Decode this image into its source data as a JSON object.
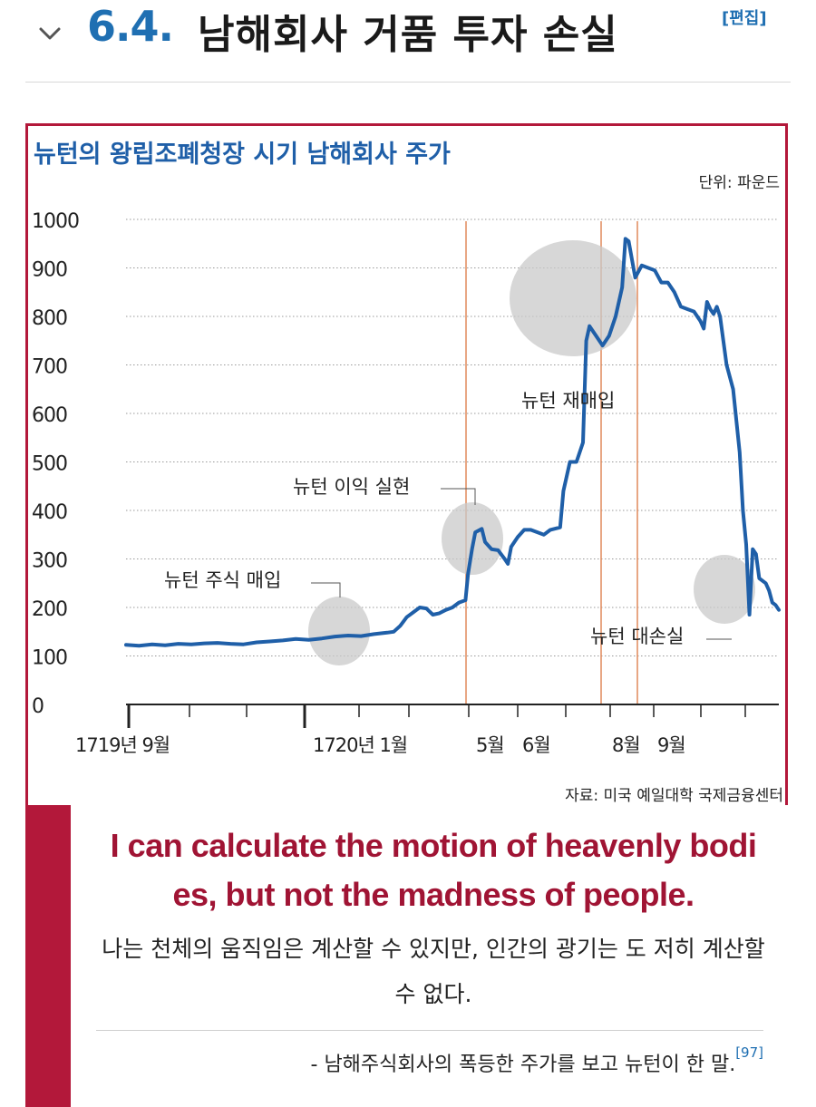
{
  "section": {
    "number": "6.4.",
    "title": "남해회사 거품 투자 손실",
    "edit_label": "[편집]",
    "toggle_icon": "chevron-down-icon"
  },
  "chart_data": {
    "type": "line",
    "title": "뉴턴의 왕립조폐청장 시기 남해회사 주가",
    "unit": "단위: 파운드",
    "source": "자료: 미국 예일대학 국제금융센터",
    "ylim": [
      0,
      1000
    ],
    "y_ticks": [
      0,
      100,
      200,
      300,
      400,
      500,
      600,
      700,
      800,
      900,
      1000
    ],
    "x_tick_labels": [
      "1719년 9월",
      "1720년 1월",
      "5월",
      "6월",
      "8월",
      "9월"
    ],
    "grid": true,
    "series": [
      {
        "color": "#1f5fa8",
        "values": [
          [
            0.0,
            123
          ],
          [
            0.02,
            121
          ],
          [
            0.04,
            124
          ],
          [
            0.06,
            122
          ],
          [
            0.08,
            125
          ],
          [
            0.1,
            124
          ],
          [
            0.12,
            126
          ],
          [
            0.14,
            127
          ],
          [
            0.16,
            125
          ],
          [
            0.18,
            124
          ],
          [
            0.2,
            128
          ],
          [
            0.22,
            130
          ],
          [
            0.24,
            132
          ],
          [
            0.26,
            135
          ],
          [
            0.28,
            133
          ],
          [
            0.3,
            136
          ],
          [
            0.32,
            140
          ],
          [
            0.34,
            142
          ],
          [
            0.36,
            141
          ],
          [
            0.38,
            145
          ],
          [
            0.4,
            148
          ],
          [
            0.41,
            150
          ],
          [
            0.42,
            162
          ],
          [
            0.43,
            180
          ],
          [
            0.44,
            190
          ],
          [
            0.45,
            200
          ],
          [
            0.46,
            198
          ],
          [
            0.47,
            185
          ],
          [
            0.48,
            188
          ],
          [
            0.49,
            195
          ],
          [
            0.5,
            200
          ],
          [
            0.51,
            210
          ],
          [
            0.52,
            215
          ],
          [
            0.524,
            270
          ],
          [
            0.53,
            320
          ],
          [
            0.535,
            355
          ],
          [
            0.545,
            362
          ],
          [
            0.55,
            335
          ],
          [
            0.56,
            320
          ],
          [
            0.57,
            318
          ],
          [
            0.58,
            300
          ],
          [
            0.585,
            290
          ],
          [
            0.59,
            325
          ],
          [
            0.6,
            345
          ],
          [
            0.61,
            360
          ],
          [
            0.62,
            360
          ],
          [
            0.64,
            350
          ],
          [
            0.65,
            360
          ],
          [
            0.665,
            365
          ],
          [
            0.67,
            440
          ],
          [
            0.68,
            500
          ],
          [
            0.69,
            500
          ],
          [
            0.7,
            540
          ],
          [
            0.705,
            750
          ],
          [
            0.71,
            780
          ],
          [
            0.72,
            760
          ],
          [
            0.73,
            740
          ],
          [
            0.74,
            760
          ],
          [
            0.75,
            800
          ],
          [
            0.76,
            860
          ],
          [
            0.765,
            960
          ],
          [
            0.77,
            955
          ],
          [
            0.78,
            880
          ],
          [
            0.79,
            905
          ],
          [
            0.8,
            900
          ],
          [
            0.81,
            895
          ],
          [
            0.82,
            870
          ],
          [
            0.83,
            870
          ],
          [
            0.84,
            850
          ],
          [
            0.85,
            820
          ],
          [
            0.86,
            815
          ],
          [
            0.87,
            810
          ],
          [
            0.88,
            790
          ],
          [
            0.885,
            775
          ],
          [
            0.89,
            830
          ],
          [
            0.895,
            815
          ],
          [
            0.9,
            805
          ],
          [
            0.905,
            820
          ],
          [
            0.91,
            800
          ],
          [
            0.915,
            750
          ],
          [
            0.92,
            700
          ],
          [
            0.93,
            650
          ],
          [
            0.94,
            520
          ],
          [
            0.945,
            400
          ],
          [
            0.95,
            330
          ],
          [
            0.955,
            185
          ],
          [
            0.96,
            320
          ],
          [
            0.965,
            310
          ],
          [
            0.97,
            260
          ],
          [
            0.98,
            250
          ],
          [
            0.985,
            235
          ],
          [
            0.99,
            210
          ],
          [
            0.995,
            205
          ],
          [
            1.0,
            195
          ]
        ]
      }
    ],
    "annotations": [
      {
        "label": "뉴턴 주식 매입"
      },
      {
        "label": "뉴턴 이익 실현"
      },
      {
        "label": "뉴턴 재매입"
      },
      {
        "label": "뉴턴 대손실"
      }
    ]
  },
  "quote": {
    "english": "I can calculate the motion of heavenly bodi es, but not the madness of people.",
    "korean": "나는 천체의 움직임은 계산할 수 있지만, 인간의 광기는 도 저히 계산할 수 없다.",
    "attribution": "- 남해주식회사의 폭등한 주가를 보고 뉴턴이 한 말.",
    "footnote": "[97]"
  }
}
